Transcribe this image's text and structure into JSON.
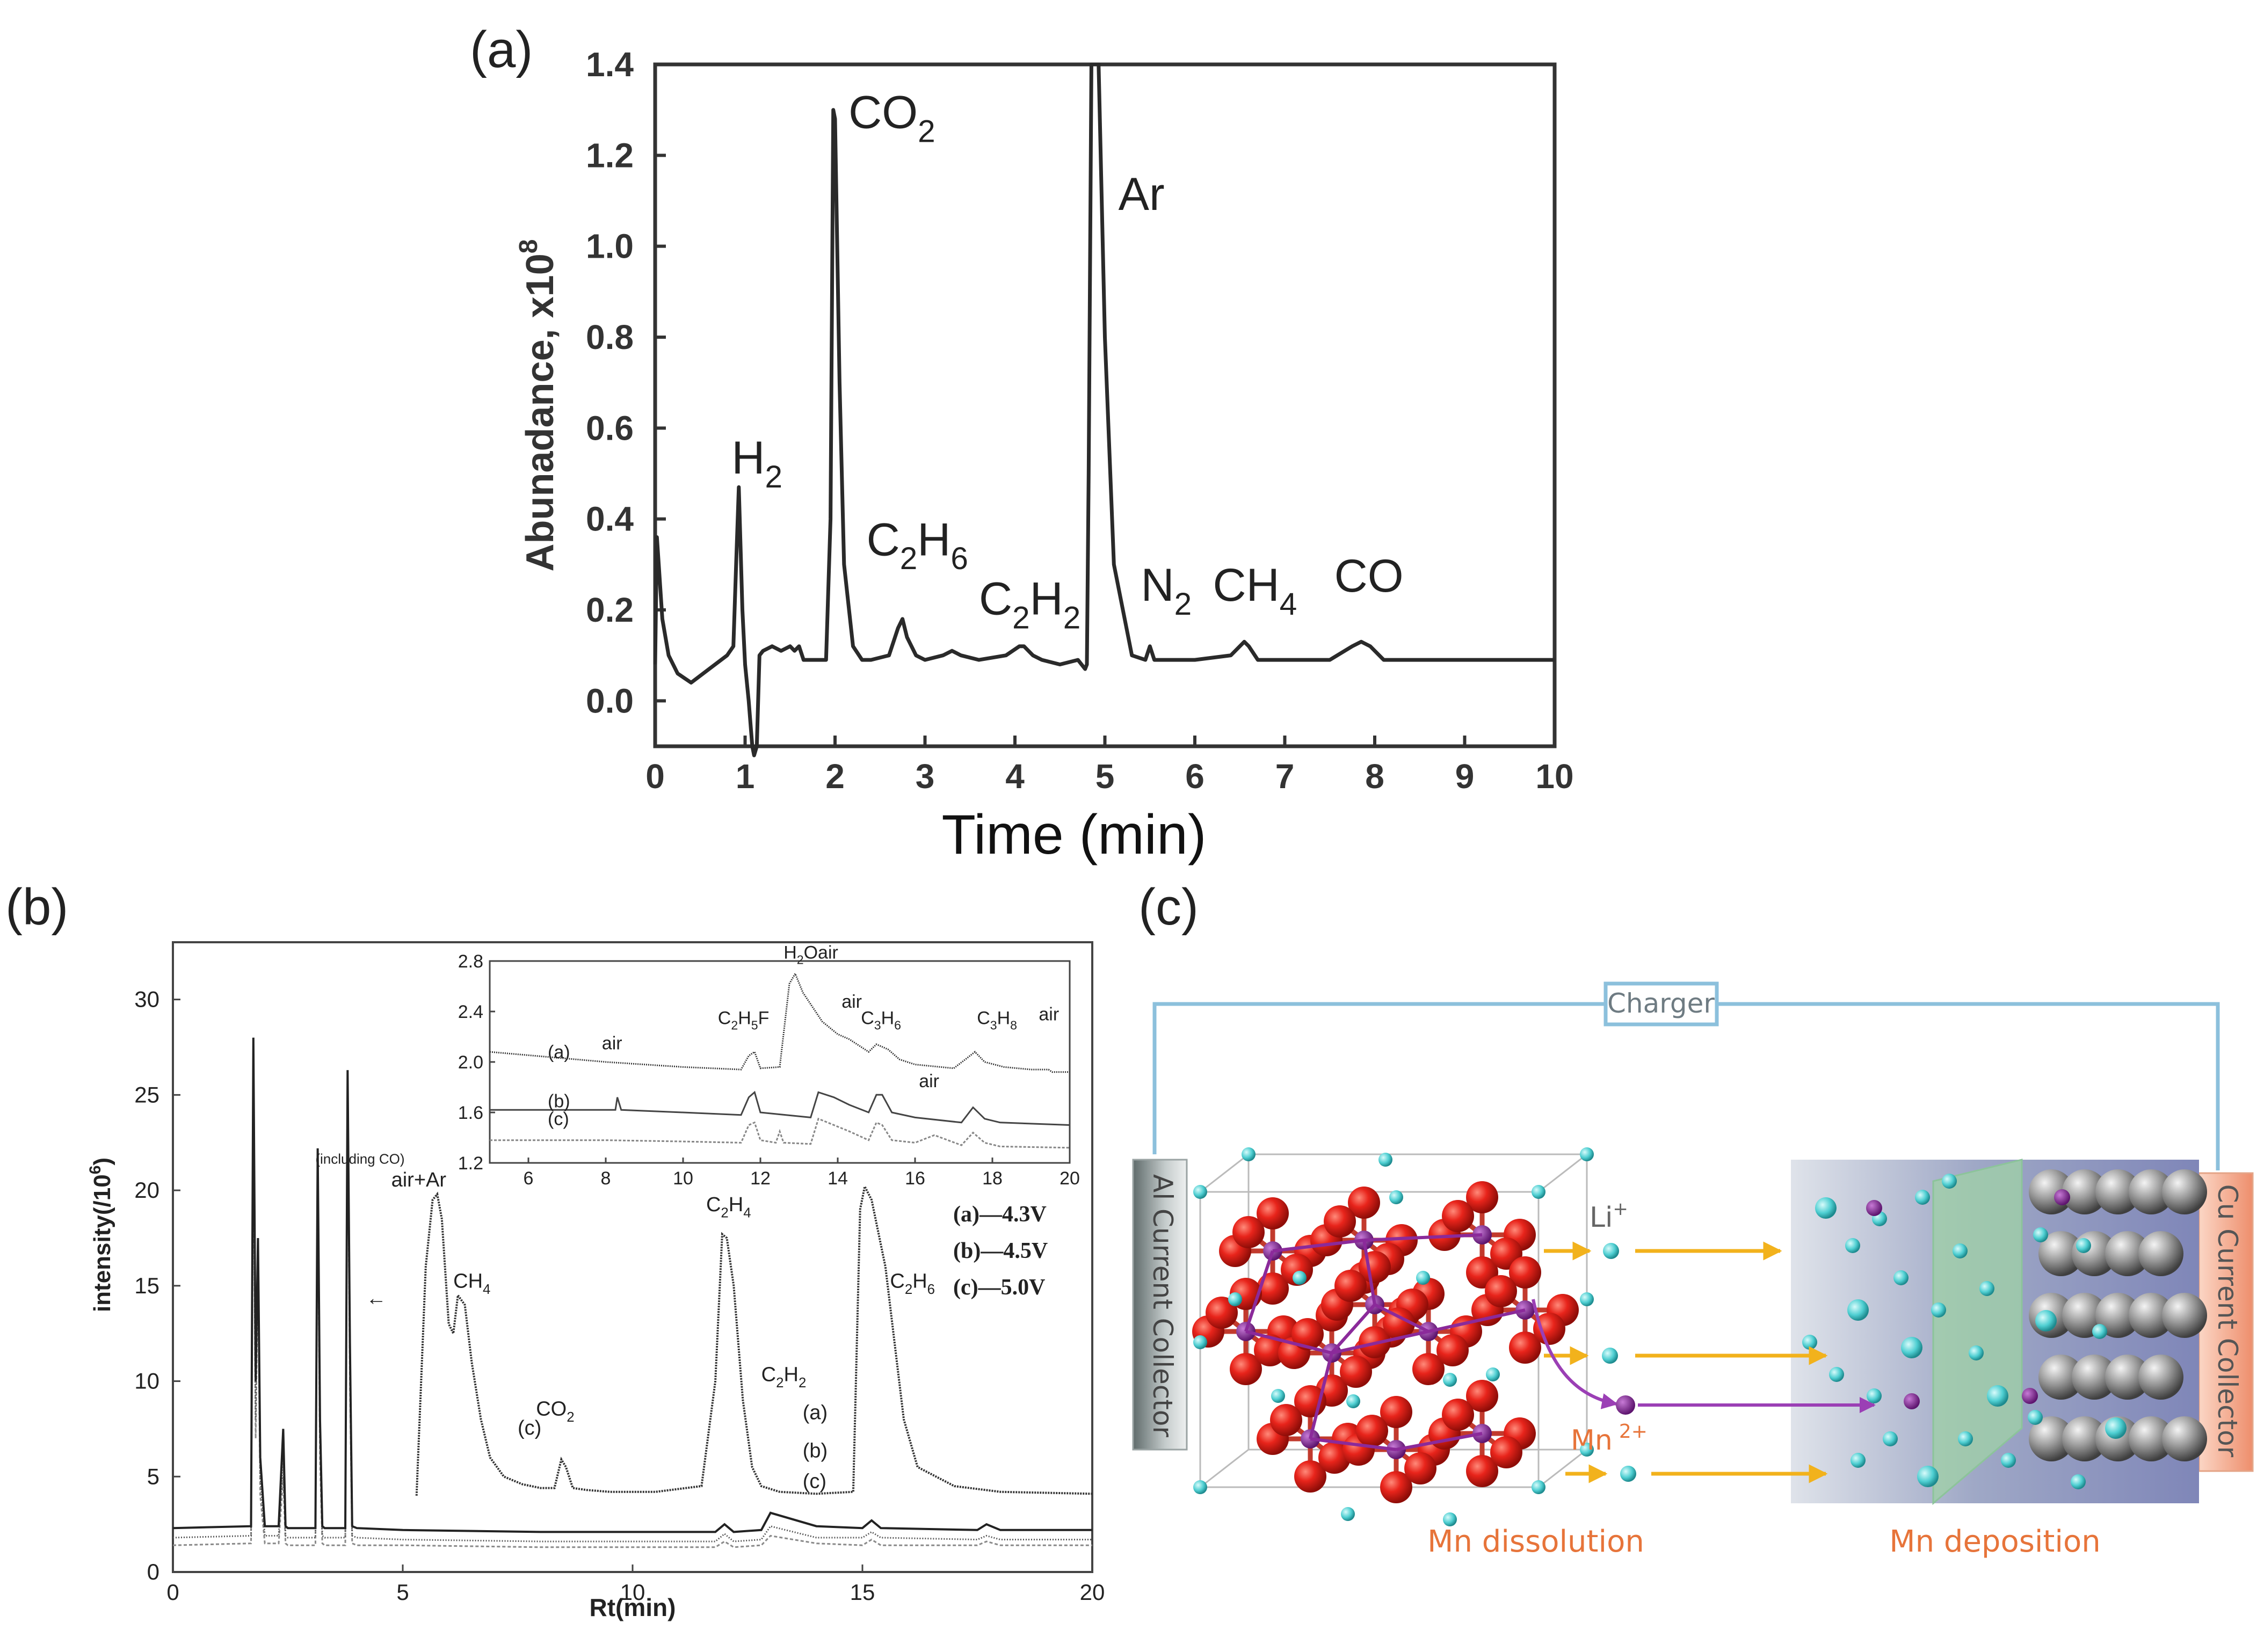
{
  "panel_labels": {
    "a": "(a)",
    "b": "(b)",
    "c": "(c)"
  },
  "chart_data": [
    {
      "id": "a",
      "type": "line",
      "title": "",
      "xlabel": "Time (min)",
      "ylabel": "Abunadance, x10",
      "ylabel_sup": "8",
      "xlim": [
        0,
        10
      ],
      "ylim": [
        -0.1,
        1.4
      ],
      "xticks": [
        "0",
        "1",
        "2",
        "3",
        "4",
        "5",
        "6",
        "7",
        "8",
        "9",
        "10"
      ],
      "yticks": [
        "0.0",
        "0.2",
        "0.4",
        "0.6",
        "0.8",
        "1.0",
        "1.2",
        "1.4"
      ],
      "grid": false,
      "series": [
        {
          "x": [
            0.0,
            0.02,
            0.04,
            0.08,
            0.15,
            0.25,
            0.4,
            0.6,
            0.8,
            0.87,
            0.9,
            0.93,
            0.97,
            1.0,
            1.04,
            1.08,
            1.1,
            1.13,
            1.16,
            1.2,
            1.3,
            1.4,
            1.5,
            1.55,
            1.6,
            1.65,
            1.7,
            1.8,
            1.9,
            1.95,
            1.98,
            2.0,
            2.05,
            2.1,
            2.2,
            2.3,
            2.4,
            2.6,
            2.7,
            2.75,
            2.8,
            2.9,
            3.0,
            3.2,
            3.3,
            3.4,
            3.6,
            3.9,
            4.05,
            4.1,
            4.2,
            4.3,
            4.5,
            4.7,
            4.78,
            4.8,
            4.82,
            4.85,
            4.9,
            4.93,
            5.0,
            5.1,
            5.3,
            5.45,
            5.5,
            5.55,
            5.7,
            6.0,
            6.4,
            6.5,
            6.55,
            6.6,
            6.7,
            7.0,
            7.5,
            7.75,
            7.85,
            7.95,
            8.1,
            8.5,
            9.0,
            10.0
          ],
          "y": [
            0.08,
            0.36,
            0.3,
            0.18,
            0.1,
            0.06,
            0.04,
            0.07,
            0.1,
            0.12,
            0.3,
            0.47,
            0.2,
            0.08,
            0.0,
            -0.1,
            -0.12,
            -0.1,
            0.1,
            0.11,
            0.12,
            0.11,
            0.12,
            0.11,
            0.12,
            0.09,
            0.09,
            0.09,
            0.09,
            0.4,
            1.3,
            1.28,
            0.7,
            0.3,
            0.12,
            0.09,
            0.09,
            0.1,
            0.16,
            0.18,
            0.14,
            0.1,
            0.09,
            0.1,
            0.11,
            0.1,
            0.09,
            0.1,
            0.12,
            0.12,
            0.1,
            0.09,
            0.08,
            0.09,
            0.07,
            0.08,
            0.5,
            1.4,
            1.4,
            1.4,
            0.8,
            0.3,
            0.1,
            0.09,
            0.12,
            0.09,
            0.09,
            0.09,
            0.1,
            0.12,
            0.13,
            0.12,
            0.09,
            0.09,
            0.09,
            0.12,
            0.13,
            0.12,
            0.09,
            0.09,
            0.09,
            0.09
          ]
        }
      ],
      "annotations": [
        {
          "text": "H",
          "sub": "2",
          "x": 0.85,
          "y": 0.5
        },
        {
          "text": "CO",
          "sub": "2",
          "x": 2.15,
          "y": 1.26
        },
        {
          "text": "C",
          "sub": "2",
          "text2": "H",
          "sub2": "6",
          "x": 2.35,
          "y": 0.32
        },
        {
          "text": "C",
          "sub": "2",
          "text2": "H",
          "sub2": "2",
          "x": 3.6,
          "y": 0.19
        },
        {
          "text": "Ar",
          "x": 5.15,
          "y": 1.08
        },
        {
          "text": "N",
          "sub": "2",
          "x": 5.4,
          "y": 0.22
        },
        {
          "text": "CH",
          "sub": "4",
          "x": 6.2,
          "y": 0.22
        },
        {
          "text": "CO",
          "x": 7.55,
          "y": 0.24
        }
      ]
    },
    {
      "id": "b",
      "type": "line",
      "title": "",
      "xlabel": "Rt(min)",
      "ylabel": "intensity(/10",
      "ylabel_sup": "6",
      "ylabel_close": ")",
      "xlim": [
        0,
        20
      ],
      "ylim": [
        0,
        33
      ],
      "xticks": [
        "0",
        "5",
        "10",
        "15",
        "20"
      ],
      "yticks": [
        "0",
        "5",
        "10",
        "15",
        "20",
        "25",
        "30"
      ],
      "grid": false,
      "legend": [
        "(a)—4.3V",
        "(b)—4.5V",
        "(c)—5.0V"
      ],
      "series": [
        {
          "name": "(a)",
          "x": [
            0,
            1.7,
            1.75,
            1.8,
            1.85,
            1.9,
            2.0,
            2.3,
            2.4,
            2.45,
            2.5,
            3.1,
            3.15,
            3.2,
            3.25,
            3.3,
            3.75,
            3.8,
            3.85,
            3.9,
            4.0,
            5,
            8,
            10,
            11.8,
            12,
            12.2,
            12.8,
            13,
            14,
            15,
            15.2,
            15.4,
            17.5,
            17.7,
            18,
            20
          ],
          "y": [
            2.3,
            2.4,
            28,
            10,
            17.5,
            6,
            2.4,
            2.4,
            7.5,
            2.4,
            2.3,
            2.3,
            22.2,
            8,
            2.4,
            2.3,
            2.3,
            26.3,
            12,
            2.4,
            2.3,
            2.2,
            2.1,
            2.1,
            2.1,
            2.5,
            2.1,
            2.2,
            3.1,
            2.4,
            2.3,
            2.7,
            2.3,
            2.2,
            2.5,
            2.2,
            2.2
          ]
        },
        {
          "name": "(b)",
          "x": [
            0,
            1.7,
            1.75,
            1.8,
            1.85,
            1.9,
            2.0,
            2.3,
            2.4,
            2.45,
            2.5,
            3.1,
            3.15,
            3.2,
            3.25,
            3.3,
            3.75,
            3.8,
            3.85,
            3.9,
            4.0,
            5,
            8,
            10,
            11.8,
            12,
            12.2,
            12.8,
            13,
            14,
            15,
            15.2,
            15.4,
            17.5,
            17.7,
            18,
            20
          ],
          "y": [
            1.8,
            1.9,
            25,
            8,
            17,
            5,
            1.9,
            1.9,
            6,
            1.9,
            1.8,
            1.8,
            21.5,
            7,
            1.9,
            1.8,
            1.8,
            26,
            11,
            1.9,
            1.8,
            1.7,
            1.6,
            1.6,
            1.6,
            2.0,
            1.6,
            1.7,
            2.4,
            1.8,
            1.8,
            2.1,
            1.8,
            1.7,
            1.9,
            1.7,
            1.7
          ]
        },
        {
          "name": "(c)",
          "x": [
            0,
            1.7,
            1.75,
            1.8,
            1.85,
            1.9,
            2.0,
            2.3,
            2.4,
            2.45,
            2.5,
            3.1,
            3.15,
            3.2,
            3.25,
            3.3,
            3.75,
            3.8,
            3.85,
            3.9,
            4.0,
            5,
            8,
            10,
            11.8,
            12,
            12.2,
            12.8,
            13,
            14,
            15,
            15.2,
            15.4,
            17.5,
            17.7,
            18,
            20
          ],
          "y": [
            1.4,
            1.5,
            24,
            7,
            16,
            4,
            1.5,
            1.5,
            5,
            1.5,
            1.4,
            1.4,
            20.5,
            6,
            1.5,
            1.4,
            1.4,
            25,
            10,
            1.5,
            1.4,
            1.4,
            1.3,
            1.3,
            1.3,
            1.6,
            1.3,
            1.4,
            1.9,
            1.5,
            1.4,
            1.7,
            1.4,
            1.4,
            1.6,
            1.4,
            1.4
          ]
        },
        {
          "name": "zoomed",
          "x": [
            5.3,
            5.5,
            5.65,
            5.75,
            5.85,
            6.0,
            6.1,
            6.2,
            6.35,
            6.5,
            6.7,
            6.9,
            7.2,
            7.6,
            8.0,
            8.3,
            8.45,
            8.55,
            8.7,
            9.0,
            9.5,
            10.5,
            11.5,
            11.8,
            11.95,
            12.05,
            12.2,
            12.4,
            12.6,
            12.8,
            13.2,
            14.0,
            14.8,
            14.95,
            15.05,
            15.2,
            15.5,
            15.7,
            15.9,
            16.2,
            17,
            18,
            20
          ],
          "y": [
            4.0,
            16,
            19.5,
            19.8,
            18.5,
            13,
            12.5,
            14.5,
            14.0,
            11,
            8,
            6,
            5,
            4.6,
            4.4,
            4.4,
            5.9,
            5.5,
            4.4,
            4.3,
            4.2,
            4.2,
            4.5,
            10,
            17.7,
            17.5,
            15,
            9,
            5.5,
            4.5,
            4.2,
            4.1,
            4.2,
            19,
            20.2,
            19.5,
            16,
            12,
            8,
            5.5,
            4.5,
            4.2,
            4.1
          ]
        }
      ],
      "annotations": [
        {
          "text": "air+Ar",
          "x": 4.75,
          "y": 20.2
        },
        {
          "text": "(including CO)",
          "x": 3.1,
          "y": 21.4
        },
        {
          "text": "←",
          "x": 4.2,
          "y": 14.0
        },
        {
          "text": "CH",
          "sub": "4",
          "x": 6.1,
          "y": 14.9
        },
        {
          "text": "(c)",
          "x": 7.5,
          "y": 7.2
        },
        {
          "text": "CO",
          "sub": "2",
          "x": 7.9,
          "y": 8.2
        },
        {
          "text": "C",
          "sub": "2",
          "text2": "H",
          "sub2": "4",
          "x": 11.6,
          "y": 18.9
        },
        {
          "text": "C",
          "sub": "2",
          "text2": "H",
          "sub2": "2",
          "x": 12.8,
          "y": 10.0
        },
        {
          "text": "(a)",
          "x": 13.7,
          "y": 8.0
        },
        {
          "text": "(b)",
          "x": 13.7,
          "y": 6.0
        },
        {
          "text": "(c)",
          "x": 13.7,
          "y": 4.4
        },
        {
          "text": "C",
          "sub": "2",
          "text2": "H",
          "sub2": "6",
          "x": 15.6,
          "y": 14.9
        }
      ],
      "inset": {
        "xlim": [
          5,
          20
        ],
        "ylim": [
          1.2,
          2.8
        ],
        "xticks": [
          "6",
          "8",
          "10",
          "12",
          "14",
          "16",
          "18",
          "20"
        ],
        "yticks": [
          "1.2",
          "1.6",
          "2.0",
          "2.4",
          "2.8"
        ],
        "series": [
          {
            "name": "(a)",
            "x": [
              5,
              8,
              10,
              11.5,
              11.7,
              11.85,
              12,
              12.5,
              12.75,
              12.9,
              13.1,
              13.6,
              14,
              14.3,
              14.8,
              15.0,
              15.3,
              15.6,
              16,
              17,
              17.3,
              17.55,
              17.8,
              18.3,
              19,
              19.45,
              19.55,
              20
            ],
            "y": [
              2.08,
              2.0,
              1.96,
              1.94,
              2.05,
              2.08,
              1.95,
              1.96,
              2.62,
              2.7,
              2.55,
              2.32,
              2.22,
              2.18,
              2.08,
              2.14,
              2.1,
              2.02,
              1.98,
              1.95,
              2.02,
              2.08,
              2.0,
              1.96,
              1.94,
              1.94,
              1.92,
              1.92
            ]
          },
          {
            "name": "(b)",
            "x": [
              5,
              8,
              8.25,
              8.3,
              8.4,
              10,
              11.5,
              11.7,
              11.85,
              12,
              13.3,
              13.5,
              13.9,
              14.3,
              14.8,
              15.0,
              15.15,
              15.4,
              16,
              17.2,
              17.5,
              17.8,
              18.2,
              20
            ],
            "y": [
              1.62,
              1.62,
              1.62,
              1.72,
              1.62,
              1.6,
              1.58,
              1.72,
              1.76,
              1.6,
              1.56,
              1.76,
              1.72,
              1.66,
              1.6,
              1.74,
              1.74,
              1.6,
              1.56,
              1.52,
              1.64,
              1.55,
              1.52,
              1.5
            ]
          },
          {
            "name": "(c)",
            "x": [
              5,
              8,
              10,
              11.5,
              11.7,
              11.85,
              12,
              12.4,
              12.5,
              12.6,
              13.3,
              13.5,
              13.9,
              14.3,
              14.8,
              15.0,
              15.15,
              15.4,
              16,
              16.5,
              17.2,
              17.5,
              17.8,
              18.2,
              20
            ],
            "y": [
              1.38,
              1.38,
              1.37,
              1.36,
              1.5,
              1.52,
              1.38,
              1.36,
              1.45,
              1.36,
              1.35,
              1.55,
              1.5,
              1.45,
              1.38,
              1.52,
              1.5,
              1.38,
              1.36,
              1.42,
              1.34,
              1.44,
              1.36,
              1.33,
              1.32
            ]
          }
        ],
        "annotations": [
          {
            "text": "(a)",
            "x": 6.5,
            "y": 2.03
          },
          {
            "text": "air",
            "x": 7.9,
            "y": 2.1
          },
          {
            "text": "(b)",
            "x": 6.5,
            "y": 1.64
          },
          {
            "text": "(c)",
            "x": 6.5,
            "y": 1.5
          },
          {
            "text": "C",
            "sub": "2",
            "text2": "H",
            "sub2": "5",
            "text3": "F",
            "x": 10.9,
            "y": 2.3
          },
          {
            "text": "H",
            "sub": "2",
            "text2": "Oair",
            "x": 12.6,
            "y": 2.82
          },
          {
            "text": "air",
            "x": 14.1,
            "y": 2.43
          },
          {
            "text": "C",
            "sub": "3",
            "text2": "H",
            "sub2": "6",
            "x": 14.6,
            "y": 2.3
          },
          {
            "text": "C",
            "sub": "3",
            "text2": "H",
            "sub2": "8",
            "x": 17.6,
            "y": 2.3
          },
          {
            "text": "air",
            "x": 19.2,
            "y": 2.33
          },
          {
            "text": "air",
            "x": 16.1,
            "y": 1.8
          }
        ]
      }
    }
  ],
  "diagram_c": {
    "charger": "Charger",
    "left_collector": "Al Current Collector",
    "right_collector": "Cu Current Collector",
    "li": "Li",
    "li_sup": "+",
    "mn": "Mn",
    "mn_sup": "2+",
    "dissolution": "Mn dissolution",
    "deposition": "Mn deposition",
    "colors": {
      "wire": "#8cc0dc",
      "arrow": "#f2b21c",
      "mn_arrow": "#9b3fb5",
      "orange_text": "#e7743a",
      "oxygen": "#e21b12",
      "manganese": "#8b2a9a",
      "lithium": "#5fd4d4"
    }
  }
}
